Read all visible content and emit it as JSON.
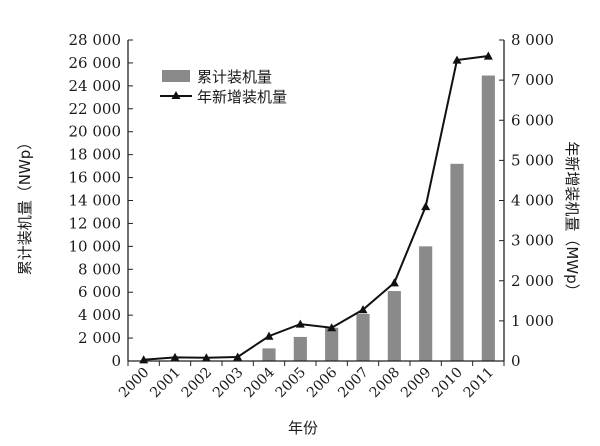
{
  "chart_data": {
    "type": "bar",
    "categories": [
      "2000",
      "2001",
      "2002",
      "2003",
      "2004",
      "2005",
      "2006",
      "2007",
      "2008",
      "2009",
      "2010",
      "2011"
    ],
    "series": [
      {
        "name": "累计装机量",
        "type": "bar",
        "axis": "left",
        "values": [
          0,
          0,
          0,
          0,
          1100,
          2100,
          2900,
          4100,
          6100,
          10000,
          17200,
          24900
        ],
        "color": "#8a8a8a"
      },
      {
        "name": "年新增装机量",
        "type": "line",
        "axis": "right",
        "marker": "triangle",
        "values": [
          30,
          90,
          80,
          100,
          620,
          920,
          830,
          1280,
          1950,
          3850,
          7500,
          7600
        ],
        "color": "#111111"
      }
    ],
    "ylabel_left": "累计装机量（NWp）",
    "ylabel_right": "年新增装机量（MWp）",
    "xlabel": "年份",
    "ylim_left": [
      0,
      28000
    ],
    "ylim_right": [
      0,
      8000
    ],
    "yticks_left": [
      "0",
      "2 000",
      "4 000",
      "6 000",
      "8 000",
      "10 000",
      "12 000",
      "14 000",
      "16 000",
      "18 000",
      "20 000",
      "22 000",
      "24 000",
      "26 000",
      "28 000"
    ],
    "yticks_right": [
      "0",
      "1 000",
      "2 000",
      "3 000",
      "4 000",
      "5 000",
      "6 000",
      "7 000",
      "8 000"
    ],
    "legend_position": "top-left",
    "grid": false
  }
}
